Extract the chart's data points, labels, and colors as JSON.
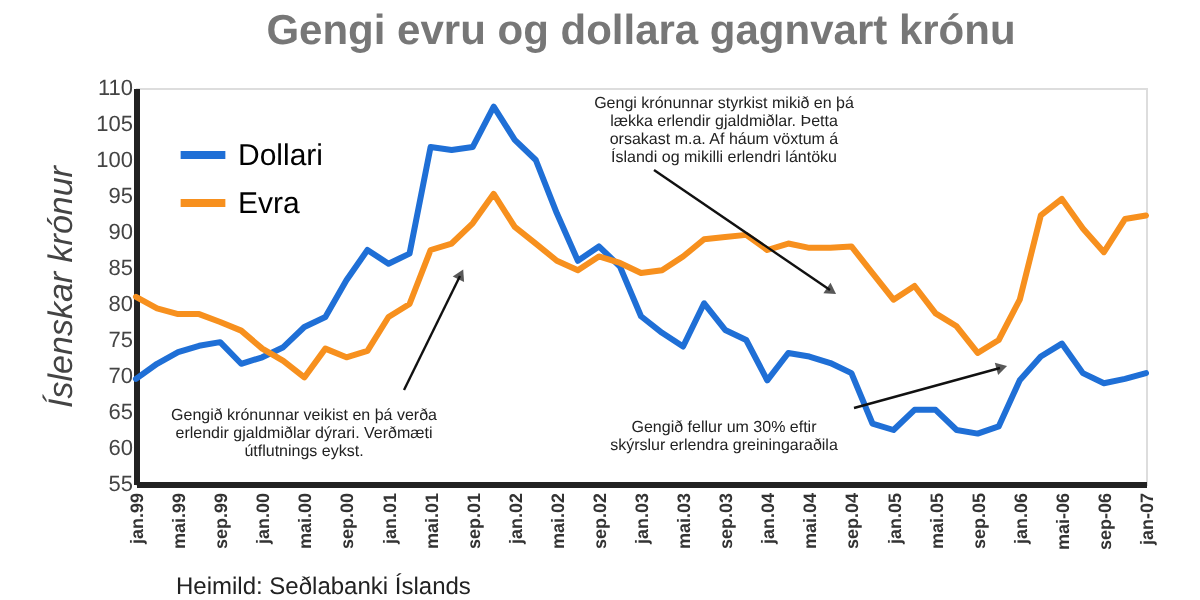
{
  "chart_data": {
    "type": "line",
    "title": "Gengi evru og dollara gagnvart krónu",
    "ylabel": "Íslenskar krónur",
    "categories": [
      "jan.99",
      null,
      "mai.99",
      null,
      "sep.99",
      null,
      "jan.00",
      null,
      "mai.00",
      null,
      "sep.00",
      null,
      "jan.01",
      null,
      "mai.01",
      null,
      "sep.01",
      null,
      "jan.02",
      null,
      "mai.02",
      null,
      "sep.02",
      null,
      "jan.03",
      null,
      "mai.03",
      null,
      "sep.03",
      null,
      "jan.04",
      null,
      "mai.04",
      null,
      "sep.04",
      null,
      "jan.05",
      null,
      "mai.05",
      null,
      "sep.05",
      null,
      "jan.06",
      null,
      "mai-06",
      null,
      "sep-06",
      null,
      "jan-07"
    ],
    "series": [
      {
        "name": "Dollari",
        "color": "#1f6fd6",
        "values": [
          69.6,
          71.7,
          73.3,
          74.2,
          74.7,
          71.7,
          72.6,
          74,
          76.8,
          78.2,
          83.3,
          87.5,
          85.6,
          87,
          101.8,
          101.4,
          101.8,
          107.4,
          102.8,
          100,
          92.6,
          86,
          88,
          85.2,
          78.3,
          76,
          74.1,
          80.1,
          76.4,
          75,
          69.4,
          73.2,
          72.7,
          71.8,
          70.4,
          63.4,
          62.5,
          65.3,
          65.3,
          62.5,
          62,
          63,
          69.4,
          72.7,
          74.5,
          70.4,
          69,
          69.6,
          70.4
        ]
      },
      {
        "name": "Evra",
        "color": "#f7901e",
        "values": [
          81,
          79.4,
          78.6,
          78.6,
          77.5,
          76.3,
          73.8,
          72.1,
          69.8,
          73.8,
          72.6,
          73.5,
          78.2,
          80,
          87.5,
          88.4,
          91.2,
          95.3,
          90.7,
          88.4,
          86,
          84.7,
          86.6,
          85.7,
          84.3,
          84.7,
          86.6,
          89,
          89.3,
          89.6,
          87.5,
          88.4,
          87.8,
          87.8,
          88,
          84.3,
          80.6,
          82.5,
          78.7,
          76.9,
          73.2,
          75,
          80.6,
          92.3,
          94.6,
          90.5,
          87.2,
          91.8,
          92.3
        ]
      }
    ],
    "ylim": [
      55,
      110
    ],
    "yticks": [
      55,
      60,
      65,
      70,
      75,
      80,
      85,
      90,
      95,
      100,
      105,
      110
    ],
    "grid": false,
    "legend": "top left",
    "line_style": "solid",
    "marker": "none",
    "annotations": [
      "Gengið krónunnar veikist en þá verða erlendir gjaldmiðlar dýrari. Verðmæti útflutnings eykst.",
      "Gengi krónunnar styrkist mikið en þá lækka erlendir gjaldmiðlar. Þetta orsakast m.a. Af háum vöxtum á Íslandi og mikilli erlendri lántöku",
      "Gengið fellur um 30% eftir skýrslur erlendra greiningaraðila",
      "Heimild: Seðlabanki Íslands"
    ]
  }
}
